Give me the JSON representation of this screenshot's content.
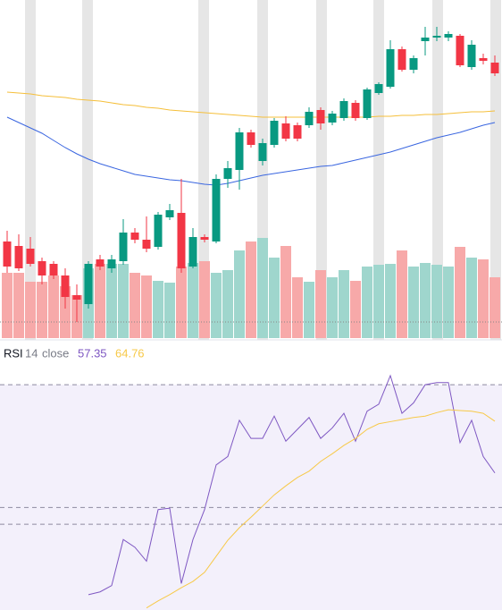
{
  "chart_data": [
    {
      "type": "candlestick",
      "open": [
        110,
        105,
        102,
        88,
        85,
        72,
        50,
        40,
        90,
        80,
        88,
        120,
        112,
        104,
        137,
        142,
        82,
        115,
        110,
        180,
        190,
        232,
        200,
        218,
        242,
        240,
        240,
        257,
        243,
        248,
        265,
        248,
        276,
        283,
        325,
        302,
        334,
        338,
        338,
        340,
        305,
        315,
        310
      ],
      "high": [
        122,
        118,
        115,
        92,
        88,
        80,
        62,
        88,
        95,
        95,
        135,
        125,
        138,
        143,
        152,
        180,
        125,
        118,
        185,
        200,
        237,
        235,
        225,
        248,
        250,
        243,
        260,
        260,
        256,
        270,
        268,
        282,
        288,
        335,
        328,
        318,
        350,
        350,
        345,
        342,
        335,
        320,
        318
      ],
      "low": [
        75,
        77,
        82,
        62,
        68,
        35,
        20,
        35,
        78,
        75,
        84,
        108,
        98,
        101,
        134,
        75,
        80,
        109,
        108,
        170,
        168,
        215,
        195,
        215,
        222,
        222,
        237,
        235,
        240,
        245,
        245,
        246,
        274,
        281,
        300,
        298,
        318,
        334,
        334,
        305,
        302,
        308,
        295
      ],
      "close": [
        82,
        80,
        85,
        72,
        72,
        48,
        45,
        85,
        82,
        90,
        120,
        112,
        102,
        140,
        145,
        80,
        115,
        112,
        180,
        192,
        232,
        218,
        220,
        245,
        225,
        225,
        255,
        242,
        253,
        267,
        248,
        280,
        286,
        325,
        302,
        315,
        338,
        340,
        342,
        307,
        330,
        312,
        298
      ],
      "up_color": "#089981",
      "down_color": "#f23645",
      "ylim": [
        0,
        380
      ],
      "volume": {
        "values": [
          73,
          73,
          63,
          63,
          70,
          58,
          48,
          78,
          83,
          83,
          83,
          73,
          70,
          64,
          62,
          80,
          84,
          86,
          73,
          76,
          98,
          108,
          112,
          90,
          103,
          68,
          63,
          76,
          68,
          76,
          64,
          80,
          82,
          83,
          98,
          80,
          84,
          82,
          80,
          102,
          90,
          88,
          68
        ],
        "up_color": "#9fd6cd",
        "down_color": "#f7a9a9",
        "ylim": [
          0,
          378
        ]
      },
      "series": [
        {
          "color": "#f5bf3a",
          "values": [
            277,
            276,
            275,
            273,
            272,
            271,
            269,
            268,
            267,
            265,
            263,
            262,
            260,
            259,
            257,
            256,
            255,
            254,
            253,
            252,
            251,
            250,
            249,
            249,
            249,
            249,
            249,
            249,
            249,
            249,
            249,
            249,
            250,
            250,
            251,
            251,
            252,
            252,
            253,
            254,
            255,
            255,
            256
          ]
        },
        {
          "color": "#3a66e0",
          "values": [
            249,
            243,
            237,
            231,
            223,
            215,
            208,
            202,
            197,
            193,
            189,
            185,
            183,
            181,
            179,
            178,
            176,
            174,
            173,
            175,
            178,
            181,
            184,
            186,
            188,
            190,
            192,
            194,
            195,
            198,
            201,
            204,
            207,
            210,
            214,
            218,
            222,
            226,
            229,
            232,
            236,
            240,
            243
          ]
        }
      ]
    },
    {
      "type": "line",
      "title": "RSI",
      "length": 14,
      "source": "close",
      "ylim": [
        37.7,
        75.4
      ],
      "hlines": [
        70,
        52.4,
        50
      ],
      "band_color": "#f3f0fb",
      "series": [
        {
          "color": "#7e57c2",
          "values": [
            null,
            null,
            null,
            null,
            null,
            null,
            null,
            39.9,
            40.3,
            41.2,
            47.8,
            46.7,
            44.7,
            52.1,
            52.3,
            41.5,
            47.8,
            52.1,
            58.5,
            59.7,
            64.9,
            62.3,
            62.3,
            65.5,
            61.9,
            63.6,
            65.3,
            62.3,
            63.8,
            65.9,
            61.9,
            66.2,
            67.2,
            71.3,
            65.9,
            67.4,
            70.0,
            70.3,
            70.3,
            61.7,
            64.9,
            59.7,
            57.35
          ]
        },
        {
          "color": "#f7c948",
          "values": [
            null,
            null,
            null,
            null,
            null,
            null,
            null,
            null,
            null,
            null,
            null,
            null,
            38.0,
            39.0,
            39.9,
            40.9,
            41.8,
            43.1,
            45.4,
            47.7,
            49.5,
            51.0,
            52.6,
            54.2,
            55.5,
            56.7,
            57.6,
            59.0,
            60.1,
            61.3,
            62.3,
            63.6,
            64.4,
            64.7,
            65.0,
            65.3,
            65.5,
            66.0,
            66.4,
            66.3,
            66.2,
            65.9,
            64.76
          ]
        }
      ]
    }
  ]
}
